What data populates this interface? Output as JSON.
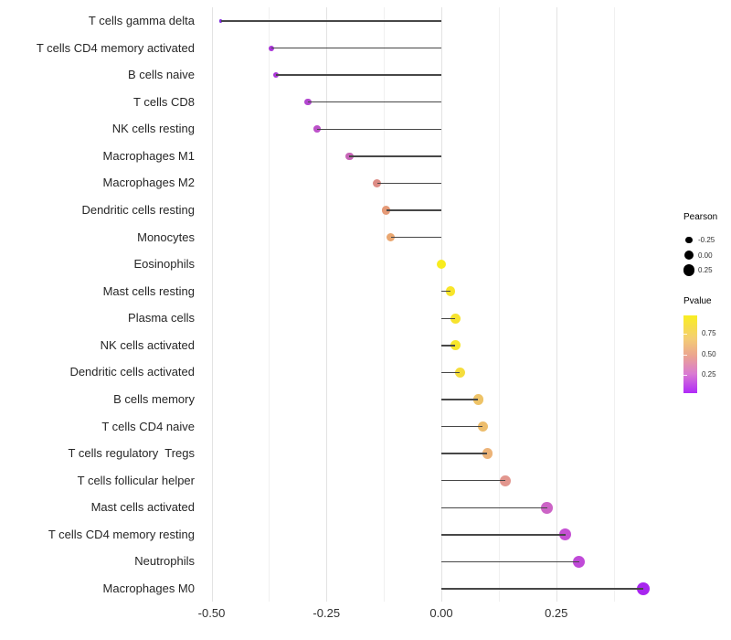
{
  "chart_data": {
    "type": "scatter",
    "variant": "lollipop",
    "title": "",
    "xlabel": "",
    "ylabel": "",
    "xlim": [
      -0.525,
      0.49
    ],
    "x_major_ticks": [
      -0.5,
      -0.25,
      0,
      0.25
    ],
    "x_major_labels": [
      "-0.50",
      "-0.25",
      "0.00",
      "0.25"
    ],
    "x_minor_ticks": [
      -0.375,
      -0.125,
      0.125,
      0.375
    ],
    "grid": true,
    "baseline_x": 0,
    "points": [
      {
        "label": "T cells gamma delta",
        "pearson": -0.48,
        "dot_color": "#7e2bdd"
      },
      {
        "label": "T cells CD4 memory activated",
        "pearson": -0.37,
        "dot_color": "#a935d8"
      },
      {
        "label": "B cells naive",
        "pearson": -0.36,
        "dot_color": "#aa36d7"
      },
      {
        "label": "T cells CD8",
        "pearson": -0.29,
        "dot_color": "#b347d0"
      },
      {
        "label": "NK cells resting",
        "pearson": -0.27,
        "dot_color": "#bc52c9"
      },
      {
        "label": "Macrophages M1",
        "pearson": -0.2,
        "dot_color": "#c765b7"
      },
      {
        "label": "Macrophages M2",
        "pearson": -0.14,
        "dot_color": "#dd8c85"
      },
      {
        "label": "Dendritic cells resting",
        "pearson": -0.12,
        "dot_color": "#e59a77"
      },
      {
        "label": "Monocytes",
        "pearson": -0.11,
        "dot_color": "#eaa771"
      },
      {
        "label": "Eosinophils",
        "pearson": 0.0,
        "dot_color": "#f8ec1e"
      },
      {
        "label": "Mast cells resting",
        "pearson": 0.02,
        "dot_color": "#f8e52a"
      },
      {
        "label": "Plasma cells",
        "pearson": 0.03,
        "dot_color": "#f7e32d"
      },
      {
        "label": "NK cells activated",
        "pearson": 0.03,
        "dot_color": "#f7e62b"
      },
      {
        "label": "Dendritic cells activated",
        "pearson": 0.04,
        "dot_color": "#f5dd3c"
      },
      {
        "label": "B cells memory",
        "pearson": 0.08,
        "dot_color": "#eec367"
      },
      {
        "label": "T cells CD4 naive",
        "pearson": 0.09,
        "dot_color": "#edbd6c"
      },
      {
        "label": "T cells regulatory  Tregs",
        "pearson": 0.1,
        "dot_color": "#ecb378"
      },
      {
        "label": "T cells follicular helper",
        "pearson": 0.14,
        "dot_color": "#e2968e"
      },
      {
        "label": "Mast cells activated",
        "pearson": 0.23,
        "dot_color": "#cc64c6"
      },
      {
        "label": "T cells CD4 memory resting",
        "pearson": 0.27,
        "dot_color": "#c550d3"
      },
      {
        "label": "Neutrophils",
        "pearson": 0.3,
        "dot_color": "#c04ad8"
      },
      {
        "label": "Macrophages M0",
        "pearson": 0.44,
        "dot_color": "#a826ef"
      }
    ],
    "legend": {
      "size": {
        "title": "Pearson",
        "dot_color": "#000000",
        "entries": [
          {
            "label": "-0.25",
            "value": -0.25
          },
          {
            "label": "0.00",
            "value": 0.0
          },
          {
            "label": "0.25",
            "value": 0.25
          }
        ]
      },
      "color": {
        "title": "Pvalue",
        "tick_labels": [
          "0.75",
          "0.50",
          "0.25"
        ],
        "gradient_stops": [
          {
            "color": "#f9ee21",
            "pos": 0
          },
          {
            "color": "#f4cd74",
            "pos": 30
          },
          {
            "color": "#eba491",
            "pos": 52
          },
          {
            "color": "#d97bd2",
            "pos": 75
          },
          {
            "color": "#b02af8",
            "pos": 100
          }
        ]
      }
    },
    "colors": {
      "stem": "#474747",
      "grid_major": "#e3e3e3",
      "grid_minor": "#f0f0f0",
      "axis_text": "#303030",
      "background": "#ffffff"
    }
  }
}
